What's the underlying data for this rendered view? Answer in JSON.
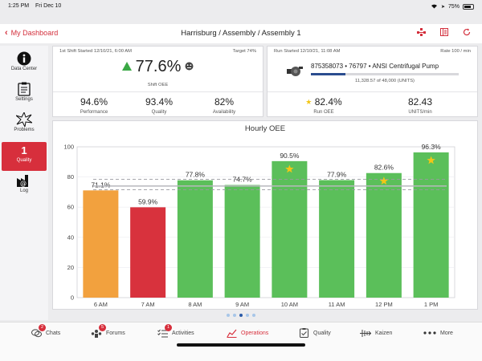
{
  "status_bar": {
    "time": "1:25 PM",
    "date": "Fri Dec 10",
    "battery": "75%",
    "battery_level": 0.75
  },
  "header": {
    "back_label": "My Dashboard",
    "title": "Harrisburg / Assembly / Assembly 1"
  },
  "sidebar": {
    "items": [
      {
        "label": "Data Center",
        "icon": "info-icon"
      },
      {
        "label": "Settings",
        "icon": "clipboard-icon"
      },
      {
        "label": "Problems",
        "icon": "burst-icon"
      },
      {
        "label": "Quality",
        "badge": "1",
        "active": true
      },
      {
        "label": "Log",
        "icon": "factory-icon"
      }
    ]
  },
  "shift": {
    "started": "1st Shift Started 12/10/21, 6:00 AM",
    "target": "Target 74%",
    "oee_value": "77.6%",
    "oee_label": "Shift OEE",
    "performance": {
      "value": "94.6%",
      "label": "Performance"
    },
    "quality": {
      "value": "93.4%",
      "label": "Quality"
    },
    "availability": {
      "value": "82%",
      "label": "Availability"
    }
  },
  "run": {
    "started": "Run Started 12/10/21, 11:08 AM",
    "rate": "Rate 100 / min",
    "product": "875358073 • 76797 • ANSI Centrifugal Pump",
    "progress_text": "11,328.57 of 48,000 (UNITS)",
    "progress_fraction": 0.236,
    "run_oee": {
      "value": "82.4%",
      "label": "Run OEE"
    },
    "units_per_min": {
      "value": "82.43",
      "label": "UNITS/min"
    }
  },
  "colors": {
    "accent": "#d72f3c",
    "green": "#5bbf5a",
    "orange": "#f2a13e",
    "red": "#d8323d",
    "star": "#f2c617"
  },
  "chart_data": {
    "type": "bar",
    "title": "Hourly OEE",
    "categories": [
      "6 AM",
      "7 AM",
      "8 AM",
      "9 AM",
      "10 AM",
      "11 AM",
      "12 PM",
      "1 PM"
    ],
    "values": [
      71.1,
      59.9,
      77.8,
      74.7,
      90.5,
      77.9,
      82.6,
      96.3
    ],
    "value_labels": [
      "71.1%",
      "59.9%",
      "77.8%",
      "74.7%",
      "90.5%",
      "77.9%",
      "82.6%",
      "96.3%"
    ],
    "bar_colors": [
      "orange",
      "red",
      "green",
      "green",
      "green",
      "green",
      "green",
      "green"
    ],
    "stars": [
      false,
      false,
      false,
      false,
      true,
      false,
      true,
      true
    ],
    "ylim": [
      0,
      100
    ],
    "yticks": [
      0,
      20,
      40,
      60,
      80,
      100
    ],
    "ytick_labels": [
      "0",
      "20",
      "40",
      "60",
      "80",
      "100"
    ],
    "reference_lines": {
      "dashed": [
        71.5,
        78.5
      ],
      "solid": 74
    }
  },
  "pager": {
    "pages": 5,
    "current": 2
  },
  "tabs": [
    {
      "label": "Chats",
      "icon": "chat-icon",
      "badge": "2"
    },
    {
      "label": "Forums",
      "icon": "forums-icon",
      "badge": "5"
    },
    {
      "label": "Activities",
      "icon": "activities-icon",
      "badge": "1"
    },
    {
      "label": "Operations",
      "icon": "operations-icon",
      "active": true
    },
    {
      "label": "Quality",
      "icon": "quality-icon"
    },
    {
      "label": "Kaizen",
      "icon": "kaizen-icon"
    },
    {
      "label": "More",
      "icon": "more-icon"
    }
  ]
}
